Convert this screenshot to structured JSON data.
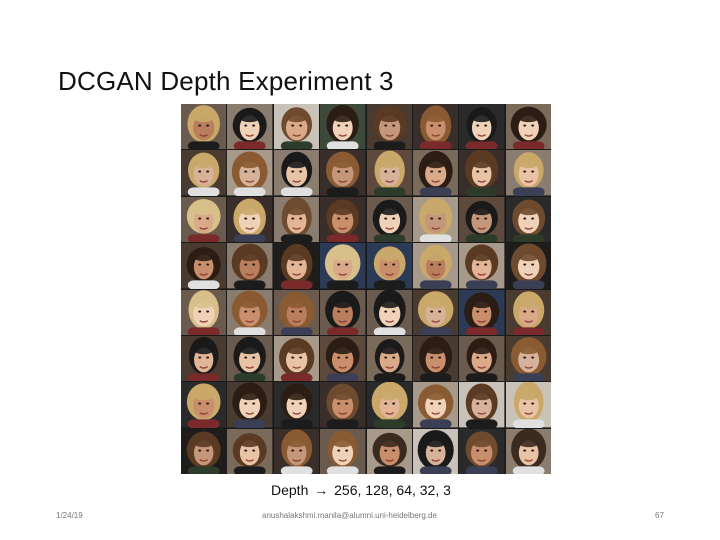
{
  "slide": {
    "title": "DCGAN Depth Experiment 3",
    "caption": {
      "label": "Depth",
      "arrow": "→",
      "values": "256, 128, 64, 32, 3"
    },
    "footer": {
      "date": "1/24/19",
      "email": "anushalakshmi.manila@alumni.uni-heidelberg.de",
      "page_number": "67"
    }
  },
  "image_grid": {
    "rows": 8,
    "columns": 8,
    "content": "generated face samples"
  }
}
